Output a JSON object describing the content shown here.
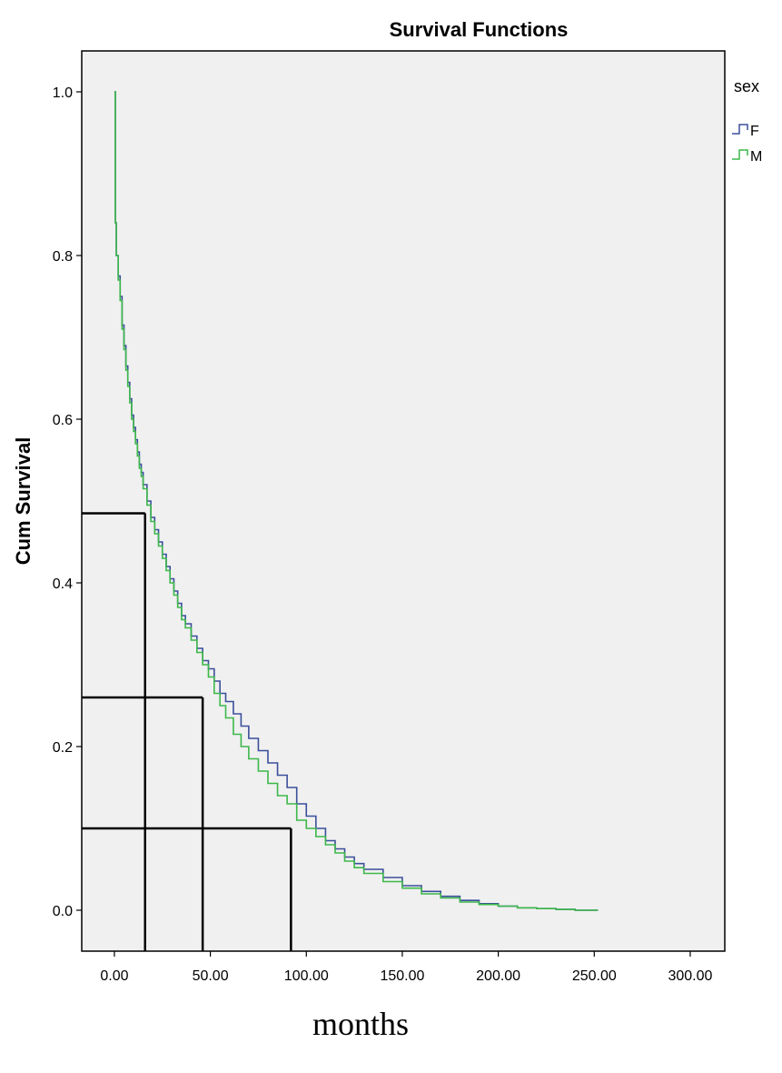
{
  "chart_data": {
    "type": "line",
    "title": "Survival Functions",
    "xlabel": "months",
    "ylabel": "Cum Survival",
    "xlim": [
      -17,
      318
    ],
    "ylim": [
      -0.05,
      1.05
    ],
    "x_ticks": [
      "0.00",
      "50.00",
      "100.00",
      "150.00",
      "200.00",
      "250.00",
      "300.00"
    ],
    "y_ticks": [
      "0.0",
      "0.2",
      "0.4",
      "0.6",
      "0.8",
      "1.0"
    ],
    "legend": {
      "title": "sex",
      "placement": "right",
      "entries": [
        "F",
        "M"
      ]
    },
    "series": [
      {
        "name": "F",
        "color": "#3b4f9b",
        "x": [
          0,
          0.5,
          1,
          2,
          3,
          4,
          5,
          6,
          7,
          8,
          9,
          10,
          11,
          12,
          13,
          14,
          15,
          17,
          19,
          21,
          23,
          25,
          27,
          29,
          31,
          33,
          35,
          37,
          40,
          43,
          46,
          49,
          52,
          55,
          58,
          62,
          66,
          70,
          75,
          80,
          85,
          90,
          95,
          100,
          105,
          110,
          115,
          120,
          125,
          130,
          140,
          150,
          160,
          170,
          180,
          190,
          200,
          210,
          220,
          230,
          240,
          252
        ],
        "y": [
          1.0,
          0.84,
          0.8,
          0.775,
          0.75,
          0.715,
          0.69,
          0.665,
          0.645,
          0.625,
          0.605,
          0.59,
          0.575,
          0.56,
          0.545,
          0.535,
          0.52,
          0.5,
          0.48,
          0.465,
          0.45,
          0.435,
          0.42,
          0.405,
          0.39,
          0.375,
          0.36,
          0.35,
          0.335,
          0.32,
          0.305,
          0.295,
          0.28,
          0.265,
          0.255,
          0.24,
          0.225,
          0.21,
          0.195,
          0.18,
          0.165,
          0.15,
          0.13,
          0.115,
          0.1,
          0.085,
          0.075,
          0.065,
          0.057,
          0.05,
          0.04,
          0.03,
          0.023,
          0.017,
          0.012,
          0.008,
          0.005,
          0.003,
          0.002,
          0.001,
          0.0,
          0.0
        ]
      },
      {
        "name": "M",
        "color": "#3cb84a",
        "x": [
          0,
          0.5,
          1,
          2,
          3,
          4,
          5,
          6,
          7,
          8,
          9,
          10,
          11,
          12,
          13,
          14,
          15,
          17,
          19,
          21,
          23,
          25,
          27,
          29,
          31,
          33,
          35,
          37,
          40,
          43,
          46,
          49,
          52,
          55,
          58,
          62,
          66,
          70,
          75,
          80,
          85,
          90,
          95,
          100,
          105,
          110,
          115,
          120,
          125,
          130,
          140,
          150,
          160,
          170,
          180,
          190,
          200,
          210,
          220,
          230,
          240,
          252
        ],
        "y": [
          1.0,
          0.84,
          0.8,
          0.77,
          0.745,
          0.71,
          0.685,
          0.66,
          0.64,
          0.62,
          0.6,
          0.585,
          0.57,
          0.555,
          0.54,
          0.53,
          0.515,
          0.495,
          0.475,
          0.46,
          0.445,
          0.43,
          0.415,
          0.4,
          0.385,
          0.37,
          0.355,
          0.345,
          0.33,
          0.315,
          0.3,
          0.285,
          0.265,
          0.25,
          0.235,
          0.215,
          0.2,
          0.185,
          0.17,
          0.155,
          0.14,
          0.13,
          0.11,
          0.1,
          0.09,
          0.08,
          0.07,
          0.06,
          0.052,
          0.045,
          0.035,
          0.027,
          0.02,
          0.015,
          0.01,
          0.007,
          0.005,
          0.003,
          0.002,
          0.001,
          0.0,
          0.0
        ]
      }
    ],
    "annotations": [
      {
        "type": "drop-lines",
        "x": 16,
        "y": 0.485
      },
      {
        "type": "drop-lines",
        "x": 46,
        "y": 0.26
      },
      {
        "type": "drop-lines",
        "x": 92,
        "y": 0.1
      }
    ]
  }
}
